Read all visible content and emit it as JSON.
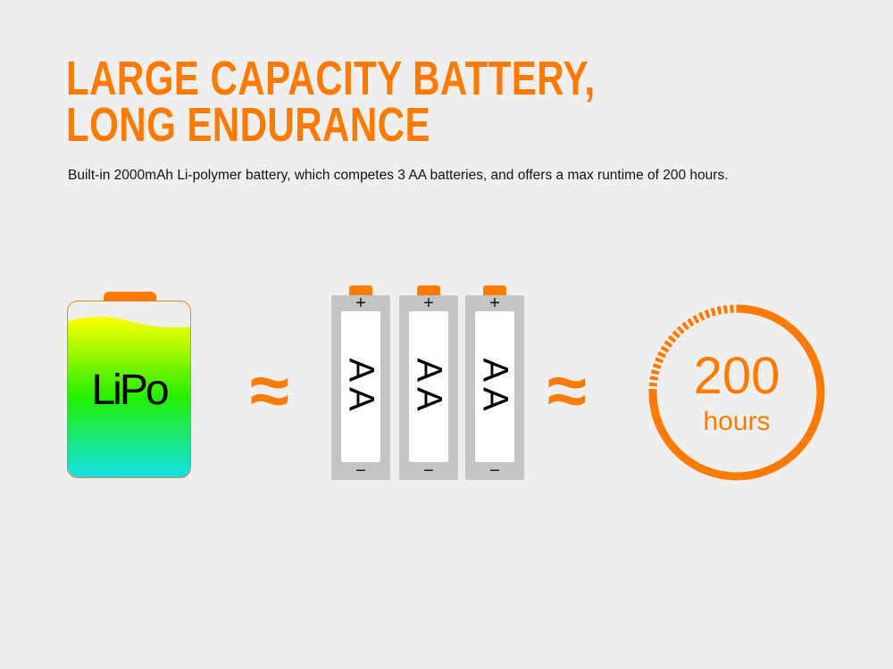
{
  "headline": {
    "line1": "LARGE CAPACITY BATTERY,",
    "line2": "LONG ENDURANCE"
  },
  "description": "Built-in 2000mAh Li-polymer battery, which competes 3 AA batteries, and offers a max runtime of 200 hours.",
  "lipo": {
    "label": "LiPo",
    "fill_level": 0.9
  },
  "approx_symbol": "≈",
  "aa_batteries": [
    {
      "label": "AA",
      "plus": "+",
      "minus": "−"
    },
    {
      "label": "AA",
      "plus": "+",
      "minus": "−"
    },
    {
      "label": "AA",
      "plus": "+",
      "minus": "−"
    }
  ],
  "runtime": {
    "value": "200",
    "unit": "hours",
    "solid_fraction": 0.75
  },
  "colors": {
    "accent": "#ff7a00",
    "battery_gray": "#c4c4c4",
    "gradient_top": "#ffff00",
    "gradient_mid": "#22ee00",
    "gradient_bottom": "#11ddee"
  }
}
